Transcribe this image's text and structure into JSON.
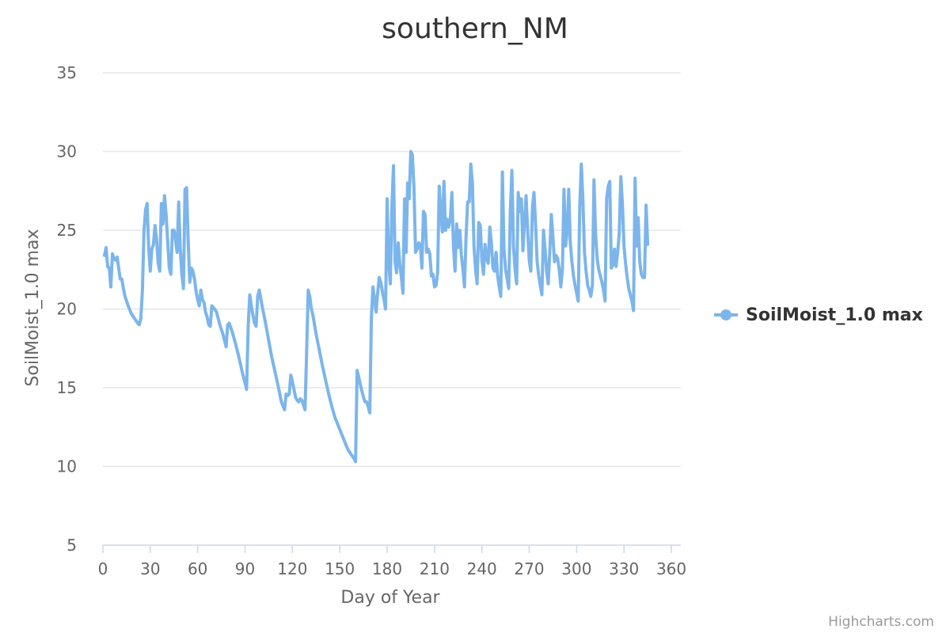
{
  "credits": "Highcharts.com",
  "colors": {
    "series": "#7cb5ec",
    "grid": "#e6e6e6",
    "axis": "#ccd6eb",
    "text": "#333333",
    "muted": "#666666"
  },
  "chart_data": {
    "type": "line",
    "title": "southern_NM",
    "xlabel": "Day of Year",
    "ylabel": "SoilMoist_1.0 max",
    "xlim": [
      0,
      366
    ],
    "ylim": [
      5,
      35
    ],
    "xticks": [
      0,
      30,
      60,
      90,
      120,
      150,
      180,
      210,
      240,
      270,
      300,
      330,
      360
    ],
    "yticks": [
      5,
      10,
      15,
      20,
      25,
      30,
      35
    ],
    "grid": true,
    "legend_position": "right",
    "series": [
      {
        "name": "SoilMoist_1.0 max",
        "points": [
          [
            1,
            23.4
          ],
          [
            2,
            23.9
          ],
          [
            3,
            22.7
          ],
          [
            4,
            22.6
          ],
          [
            5,
            21.4
          ],
          [
            6,
            23.5
          ],
          [
            7,
            23.2
          ],
          [
            8,
            23.1
          ],
          [
            9,
            23.3
          ],
          [
            10,
            22.6
          ],
          [
            11,
            21.9
          ],
          [
            12,
            21.9
          ],
          [
            13,
            21.3
          ],
          [
            14,
            20.8
          ],
          [
            16,
            20.2
          ],
          [
            18,
            19.7
          ],
          [
            20,
            19.4
          ],
          [
            22,
            19.1
          ],
          [
            23,
            19.0
          ],
          [
            24,
            19.4
          ],
          [
            25,
            21.2
          ],
          [
            26,
            25.0
          ],
          [
            27,
            26.3
          ],
          [
            28,
            26.7
          ],
          [
            29,
            23.9
          ],
          [
            30,
            22.4
          ],
          [
            31,
            23.8
          ],
          [
            32,
            24.1
          ],
          [
            33,
            25.3
          ],
          [
            34,
            24.4
          ],
          [
            35,
            22.9
          ],
          [
            36,
            22.4
          ],
          [
            37,
            26.7
          ],
          [
            38,
            25.4
          ],
          [
            39,
            27.2
          ],
          [
            40,
            26.0
          ],
          [
            41,
            24.3
          ],
          [
            42,
            22.6
          ],
          [
            43,
            22.2
          ],
          [
            44,
            25.0
          ],
          [
            45,
            25.0
          ],
          [
            46,
            24.4
          ],
          [
            47,
            23.6
          ],
          [
            48,
            26.8
          ],
          [
            49,
            23.8
          ],
          [
            50,
            22.2
          ],
          [
            51,
            21.3
          ],
          [
            52,
            27.6
          ],
          [
            53,
            27.7
          ],
          [
            54,
            24.3
          ],
          [
            55,
            21.7
          ],
          [
            56,
            22.6
          ],
          [
            57,
            22.4
          ],
          [
            58,
            21.9
          ],
          [
            59,
            21.1
          ],
          [
            60,
            20.6
          ],
          [
            61,
            20.2
          ],
          [
            62,
            21.2
          ],
          [
            63,
            20.6
          ],
          [
            64,
            20.4
          ],
          [
            65,
            19.8
          ],
          [
            66,
            19.5
          ],
          [
            67,
            19.0
          ],
          [
            68,
            18.9
          ],
          [
            69,
            20.2
          ],
          [
            70,
            20.1
          ],
          [
            72,
            19.8
          ],
          [
            74,
            19.0
          ],
          [
            76,
            18.4
          ],
          [
            78,
            17.6
          ],
          [
            79,
            19.0
          ],
          [
            80,
            19.1
          ],
          [
            82,
            18.5
          ],
          [
            84,
            17.8
          ],
          [
            86,
            17.0
          ],
          [
            88,
            16.1
          ],
          [
            90,
            15.3
          ],
          [
            91,
            14.9
          ],
          [
            92,
            18.9
          ],
          [
            93,
            20.9
          ],
          [
            94,
            20.2
          ],
          [
            95,
            19.6
          ],
          [
            96,
            19.1
          ],
          [
            97,
            18.9
          ],
          [
            98,
            20.8
          ],
          [
            99,
            21.2
          ],
          [
            101,
            20.1
          ],
          [
            103,
            19.1
          ],
          [
            105,
            18.0
          ],
          [
            107,
            16.9
          ],
          [
            109,
            16.0
          ],
          [
            111,
            15.1
          ],
          [
            113,
            14.1
          ],
          [
            115,
            13.6
          ],
          [
            116,
            14.6
          ],
          [
            117,
            14.5
          ],
          [
            118,
            14.6
          ],
          [
            119,
            15.8
          ],
          [
            120,
            15.4
          ],
          [
            121,
            14.9
          ],
          [
            122,
            14.4
          ],
          [
            123,
            14.2
          ],
          [
            124,
            14.1
          ],
          [
            125,
            14.3
          ],
          [
            126,
            14.2
          ],
          [
            127,
            13.9
          ],
          [
            128,
            13.6
          ],
          [
            129,
            17.2
          ],
          [
            130,
            21.2
          ],
          [
            131,
            20.8
          ],
          [
            132,
            20.0
          ],
          [
            133,
            19.6
          ],
          [
            135,
            18.4
          ],
          [
            137,
            17.4
          ],
          [
            139,
            16.4
          ],
          [
            141,
            15.5
          ],
          [
            143,
            14.6
          ],
          [
            145,
            13.8
          ],
          [
            147,
            13.1
          ],
          [
            149,
            12.6
          ],
          [
            151,
            12.1
          ],
          [
            153,
            11.6
          ],
          [
            155,
            11.1
          ],
          [
            157,
            10.8
          ],
          [
            159,
            10.5
          ],
          [
            160,
            10.3
          ],
          [
            161,
            16.1
          ],
          [
            162,
            15.7
          ],
          [
            163,
            15.2
          ],
          [
            164,
            14.8
          ],
          [
            165,
            14.4
          ],
          [
            166,
            14.1
          ],
          [
            167,
            14.1
          ],
          [
            168,
            13.8
          ],
          [
            169,
            13.4
          ],
          [
            170,
            19.4
          ],
          [
            171,
            21.4
          ],
          [
            172,
            20.6
          ],
          [
            173,
            19.8
          ],
          [
            174,
            21.0
          ],
          [
            175,
            22.0
          ],
          [
            176,
            21.7
          ],
          [
            177,
            21.1
          ],
          [
            178,
            20.6
          ],
          [
            179,
            20.0
          ],
          [
            180,
            27.0
          ],
          [
            181,
            23.0
          ],
          [
            182,
            21.6
          ],
          [
            183,
            26.4
          ],
          [
            184,
            29.1
          ],
          [
            185,
            23.0
          ],
          [
            186,
            22.3
          ],
          [
            187,
            24.2
          ],
          [
            188,
            22.9
          ],
          [
            189,
            22.0
          ],
          [
            190,
            21.0
          ],
          [
            191,
            27.0
          ],
          [
            192,
            23.6
          ],
          [
            193,
            28.0
          ],
          [
            194,
            27.0
          ],
          [
            195,
            30.0
          ],
          [
            196,
            29.8
          ],
          [
            197,
            27.7
          ],
          [
            198,
            23.6
          ],
          [
            199,
            23.8
          ],
          [
            200,
            24.2
          ],
          [
            201,
            24.1
          ],
          [
            202,
            22.6
          ],
          [
            203,
            26.2
          ],
          [
            204,
            26.0
          ],
          [
            205,
            23.6
          ],
          [
            206,
            23.8
          ],
          [
            207,
            23.5
          ],
          [
            208,
            22.1
          ],
          [
            209,
            22.2
          ],
          [
            210,
            21.4
          ],
          [
            211,
            21.5
          ],
          [
            212,
            22.3
          ],
          [
            213,
            27.8
          ],
          [
            214,
            26.2
          ],
          [
            215,
            24.9
          ],
          [
            216,
            28.1
          ],
          [
            217,
            25.0
          ],
          [
            218,
            25.7
          ],
          [
            219,
            25.2
          ],
          [
            220,
            25.7
          ],
          [
            221,
            27.4
          ],
          [
            222,
            24.0
          ],
          [
            223,
            22.4
          ],
          [
            224,
            25.4
          ],
          [
            225,
            23.9
          ],
          [
            226,
            25.0
          ],
          [
            227,
            23.4
          ],
          [
            228,
            22.5
          ],
          [
            229,
            21.4
          ],
          [
            230,
            24.6
          ],
          [
            231,
            26.8
          ],
          [
            232,
            26.8
          ],
          [
            233,
            29.2
          ],
          [
            234,
            28.0
          ],
          [
            235,
            24.0
          ],
          [
            236,
            22.5
          ],
          [
            237,
            21.6
          ],
          [
            238,
            25.5
          ],
          [
            239,
            25.3
          ],
          [
            240,
            23.1
          ],
          [
            241,
            22.2
          ],
          [
            242,
            24.1
          ],
          [
            243,
            23.2
          ],
          [
            244,
            22.9
          ],
          [
            245,
            25.2
          ],
          [
            246,
            24.2
          ],
          [
            247,
            22.6
          ],
          [
            248,
            22.4
          ],
          [
            249,
            23.6
          ],
          [
            250,
            22.1
          ],
          [
            251,
            21.4
          ],
          [
            252,
            20.8
          ],
          [
            253,
            28.7
          ],
          [
            254,
            23.8
          ],
          [
            255,
            22.5
          ],
          [
            256,
            21.9
          ],
          [
            257,
            21.3
          ],
          [
            258,
            26.2
          ],
          [
            259,
            28.8
          ],
          [
            260,
            24.0
          ],
          [
            261,
            22.5
          ],
          [
            262,
            21.6
          ],
          [
            263,
            27.4
          ],
          [
            264,
            26.2
          ],
          [
            265,
            27.0
          ],
          [
            266,
            23.7
          ],
          [
            267,
            25.5
          ],
          [
            268,
            27.2
          ],
          [
            269,
            25.0
          ],
          [
            270,
            23.1
          ],
          [
            271,
            22.4
          ],
          [
            272,
            26.4
          ],
          [
            273,
            27.4
          ],
          [
            274,
            25.4
          ],
          [
            275,
            23.0
          ],
          [
            276,
            22.1
          ],
          [
            277,
            21.5
          ],
          [
            278,
            20.9
          ],
          [
            279,
            25.0
          ],
          [
            280,
            23.8
          ],
          [
            281,
            22.4
          ],
          [
            282,
            21.6
          ],
          [
            283,
            23.7
          ],
          [
            284,
            26.0
          ],
          [
            285,
            24.6
          ],
          [
            286,
            23.0
          ],
          [
            287,
            23.4
          ],
          [
            288,
            23.2
          ],
          [
            289,
            22.5
          ],
          [
            290,
            21.4
          ],
          [
            291,
            22.5
          ],
          [
            292,
            27.6
          ],
          [
            293,
            24.0
          ],
          [
            294,
            24.9
          ],
          [
            295,
            27.6
          ],
          [
            296,
            24.2
          ],
          [
            297,
            23.0
          ],
          [
            298,
            22.1
          ],
          [
            299,
            21.5
          ],
          [
            300,
            21.0
          ],
          [
            301,
            20.5
          ],
          [
            302,
            26.5
          ],
          [
            303,
            29.2
          ],
          [
            304,
            26.9
          ],
          [
            305,
            23.6
          ],
          [
            306,
            22.4
          ],
          [
            307,
            21.5
          ],
          [
            308,
            21.2
          ],
          [
            309,
            20.8
          ],
          [
            310,
            21.5
          ],
          [
            311,
            28.2
          ],
          [
            312,
            24.8
          ],
          [
            313,
            23.2
          ],
          [
            314,
            22.5
          ],
          [
            315,
            22.1
          ],
          [
            316,
            21.7
          ],
          [
            317,
            21.2
          ],
          [
            318,
            20.5
          ],
          [
            319,
            27.0
          ],
          [
            320,
            27.8
          ],
          [
            321,
            28.1
          ],
          [
            322,
            22.6
          ],
          [
            323,
            22.8
          ],
          [
            324,
            23.8
          ],
          [
            325,
            22.7
          ],
          [
            326,
            23.6
          ],
          [
            327,
            24.8
          ],
          [
            328,
            28.4
          ],
          [
            329,
            26.7
          ],
          [
            330,
            24.0
          ],
          [
            331,
            22.9
          ],
          [
            332,
            22.0
          ],
          [
            333,
            21.3
          ],
          [
            334,
            20.9
          ],
          [
            335,
            20.5
          ],
          [
            336,
            19.9
          ],
          [
            337,
            28.3
          ],
          [
            338,
            24.0
          ],
          [
            339,
            25.8
          ],
          [
            340,
            23.0
          ],
          [
            341,
            22.2
          ],
          [
            342,
            22.0
          ],
          [
            343,
            22.0
          ],
          [
            344,
            26.6
          ],
          [
            345,
            24.1
          ]
        ]
      }
    ]
  }
}
